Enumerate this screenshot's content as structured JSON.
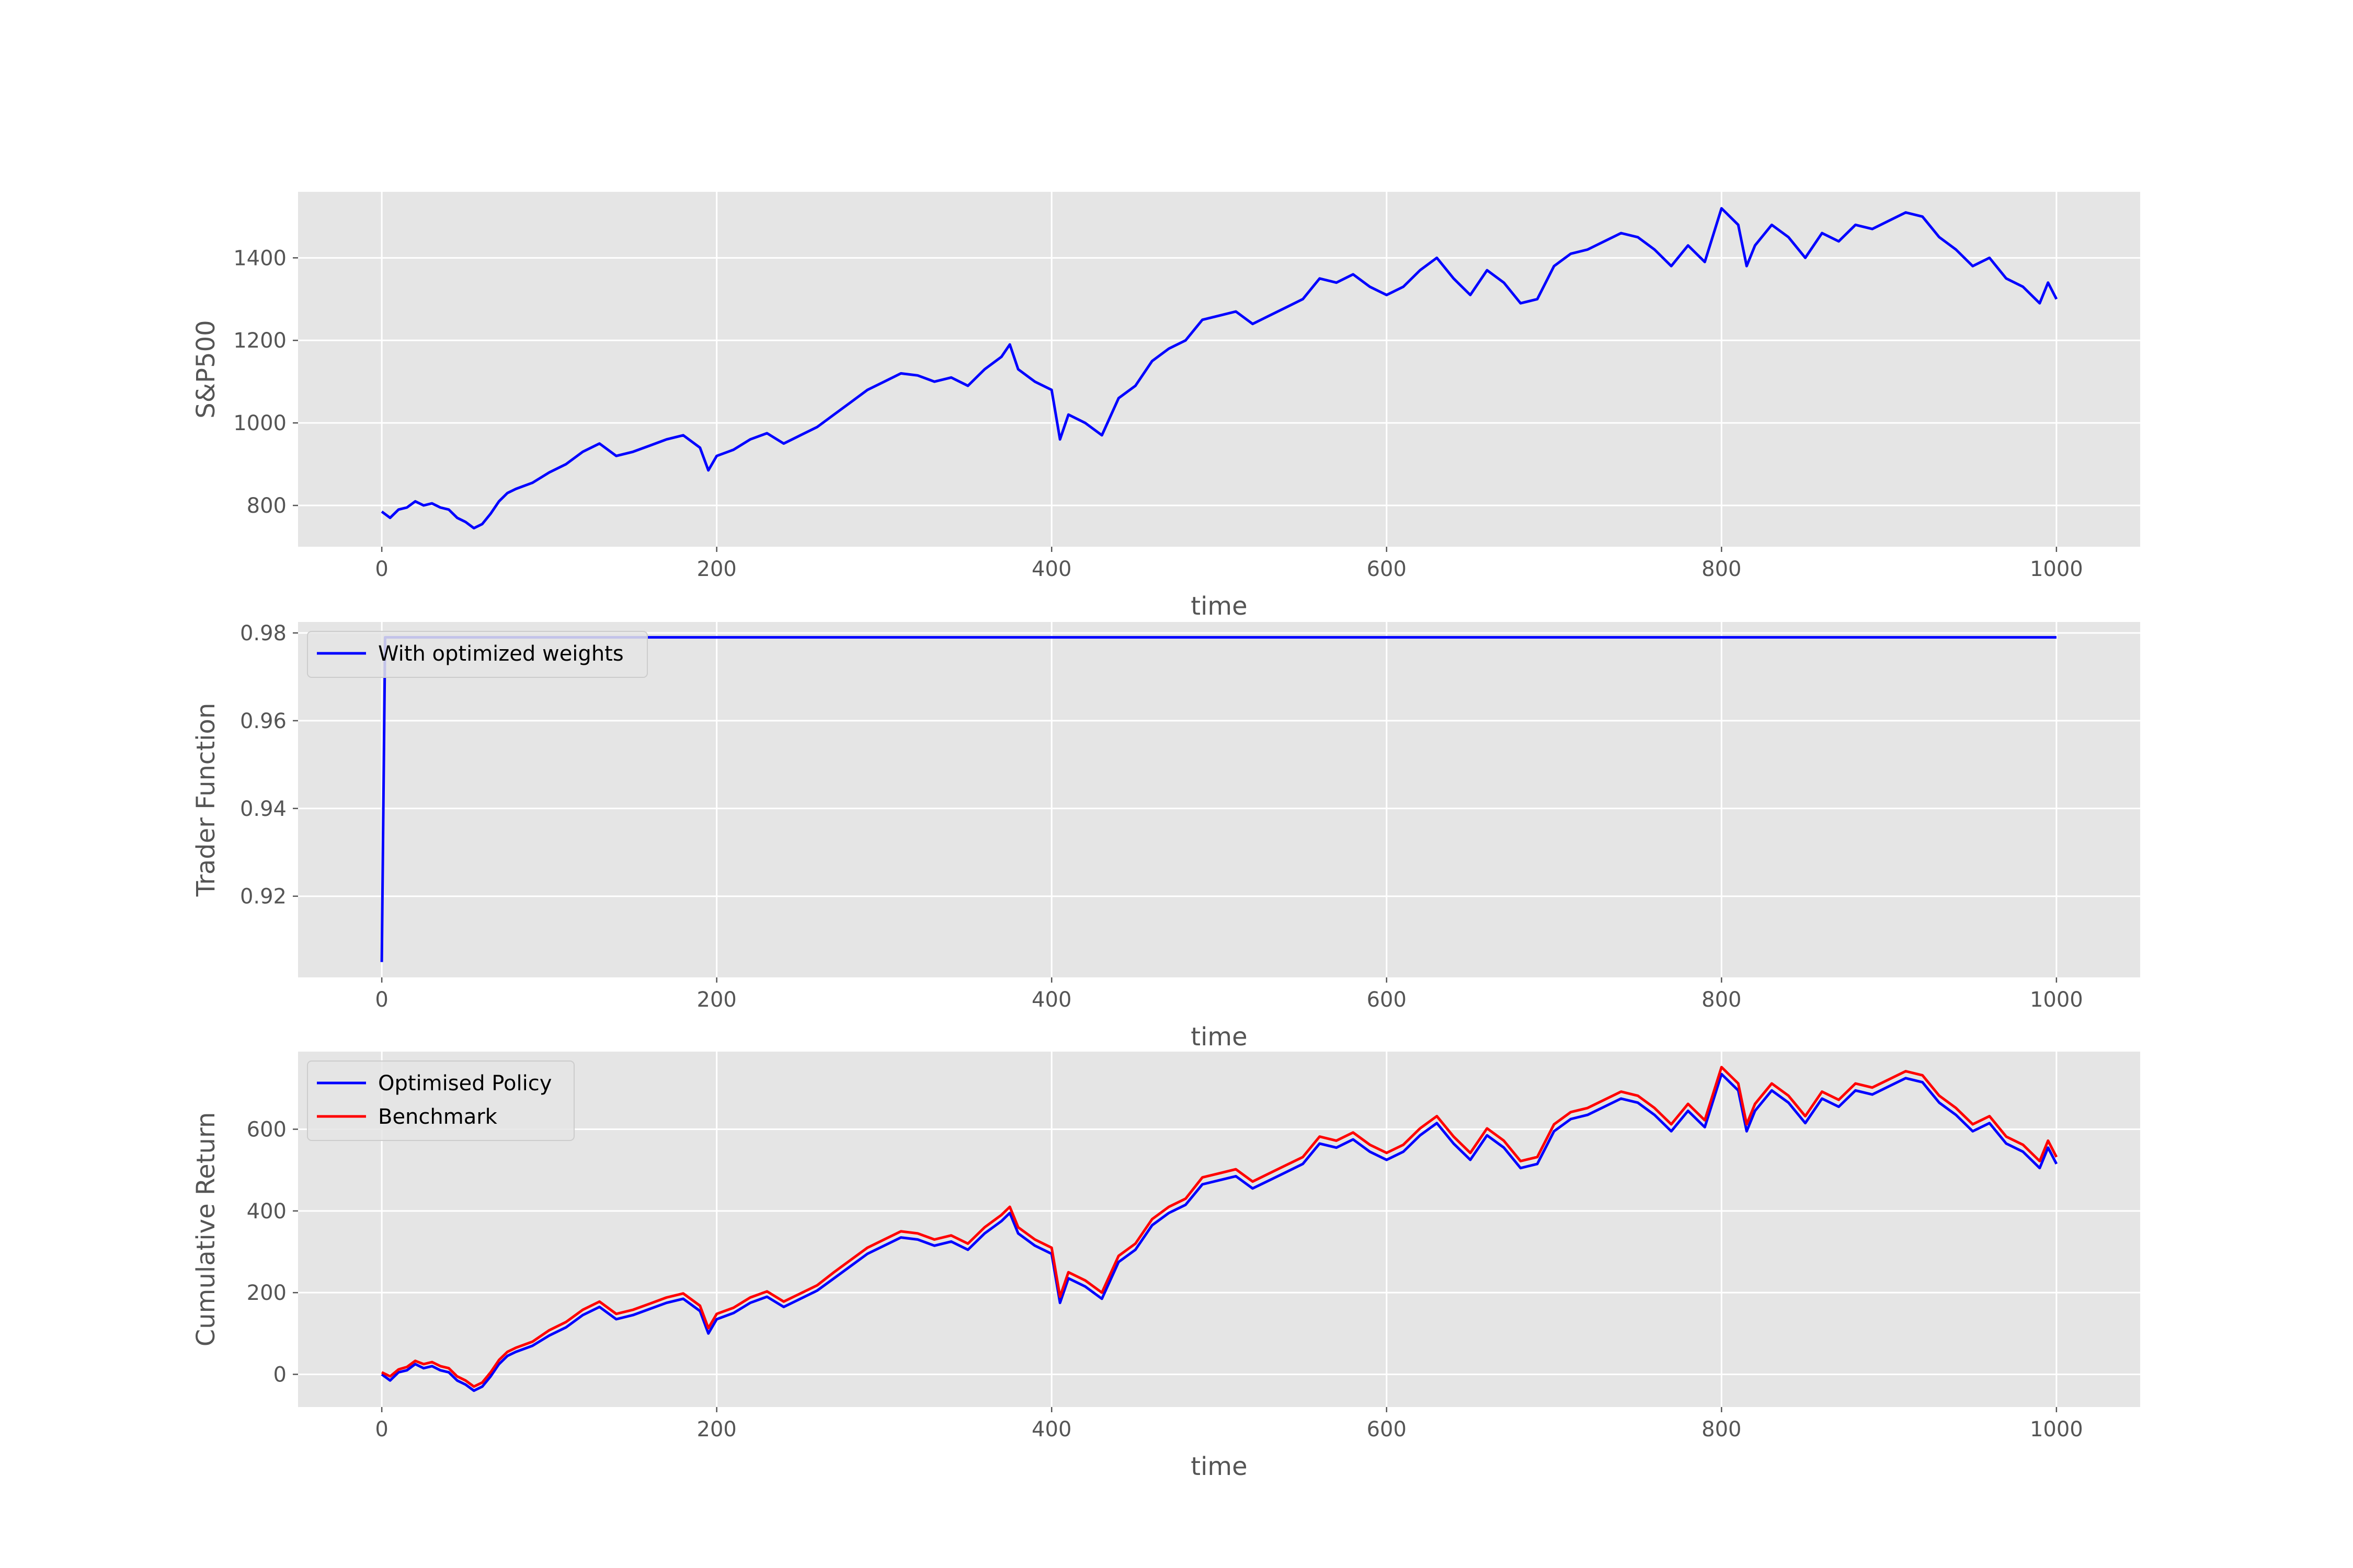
{
  "chart_data": [
    {
      "type": "line",
      "title": "",
      "xlabel": "time",
      "ylabel": "S&P500",
      "xlim": [
        -50,
        1050
      ],
      "ylim": [
        700,
        1560
      ],
      "xticks": [
        0,
        200,
        400,
        600,
        800,
        1000
      ],
      "yticks": [
        800,
        1000,
        1200,
        1400
      ],
      "grid": true,
      "legend": "none",
      "series": [
        {
          "color": "#0000ff",
          "x": [
            0,
            5,
            10,
            15,
            20,
            25,
            30,
            35,
            40,
            45,
            50,
            55,
            60,
            65,
            70,
            75,
            80,
            90,
            100,
            110,
            120,
            130,
            140,
            150,
            160,
            170,
            180,
            190,
            195,
            200,
            210,
            220,
            230,
            240,
            250,
            260,
            270,
            280,
            290,
            300,
            310,
            320,
            330,
            340,
            350,
            360,
            370,
            375,
            380,
            390,
            400,
            405,
            410,
            420,
            430,
            440,
            450,
            460,
            470,
            480,
            490,
            500,
            510,
            520,
            530,
            540,
            550,
            560,
            570,
            580,
            590,
            600,
            610,
            620,
            630,
            640,
            650,
            660,
            670,
            680,
            690,
            700,
            710,
            720,
            730,
            740,
            750,
            760,
            770,
            780,
            790,
            800,
            810,
            815,
            820,
            830,
            840,
            850,
            860,
            870,
            880,
            890,
            900,
            910,
            920,
            930,
            940,
            950,
            960,
            970,
            980,
            990,
            995,
            1000
          ],
          "values": [
            785,
            770,
            790,
            795,
            810,
            800,
            805,
            795,
            790,
            770,
            760,
            745,
            755,
            780,
            810,
            830,
            840,
            855,
            880,
            900,
            930,
            950,
            920,
            930,
            945,
            960,
            970,
            940,
            885,
            920,
            935,
            960,
            975,
            950,
            970,
            990,
            1020,
            1050,
            1080,
            1100,
            1120,
            1115,
            1100,
            1110,
            1090,
            1130,
            1160,
            1190,
            1130,
            1100,
            1080,
            960,
            1020,
            1000,
            970,
            1060,
            1090,
            1150,
            1180,
            1200,
            1250,
            1260,
            1270,
            1240,
            1260,
            1280,
            1300,
            1350,
            1340,
            1360,
            1330,
            1310,
            1330,
            1370,
            1400,
            1350,
            1310,
            1370,
            1340,
            1290,
            1300,
            1380,
            1410,
            1420,
            1440,
            1460,
            1450,
            1420,
            1380,
            1430,
            1390,
            1520,
            1480,
            1380,
            1430,
            1480,
            1450,
            1400,
            1460,
            1440,
            1480,
            1470,
            1490,
            1510,
            1500,
            1450,
            1420,
            1380,
            1400,
            1350,
            1330,
            1290,
            1340,
            1300
          ]
        }
      ]
    },
    {
      "type": "line",
      "title": "",
      "xlabel": "time",
      "ylabel": "Trader Function",
      "xlim": [
        -50,
        1050
      ],
      "ylim": [
        0.9015,
        0.9825
      ],
      "xticks": [
        0,
        200,
        400,
        600,
        800,
        1000
      ],
      "yticks": [
        0.92,
        0.94,
        0.96,
        0.98
      ],
      "grid": true,
      "legend": "top-left",
      "series": [
        {
          "name": "With optimized weights",
          "color": "#0000ff",
          "x": [
            0,
            2,
            1000
          ],
          "values": [
            0.905,
            0.979,
            0.979
          ]
        }
      ]
    },
    {
      "type": "line",
      "title": "",
      "xlabel": "time",
      "ylabel": "Cumulative Return",
      "xlim": [
        -50,
        1050
      ],
      "ylim": [
        -80,
        790
      ],
      "xticks": [
        0,
        200,
        400,
        600,
        800,
        1000
      ],
      "yticks": [
        0,
        200,
        400,
        600
      ],
      "grid": true,
      "legend": "top-left",
      "series": [
        {
          "name": "Optimised Policy",
          "color": "#0000ff",
          "x": [
            0,
            5,
            10,
            15,
            20,
            25,
            30,
            35,
            40,
            45,
            50,
            55,
            60,
            65,
            70,
            75,
            80,
            90,
            100,
            110,
            120,
            130,
            140,
            150,
            160,
            170,
            180,
            190,
            195,
            200,
            210,
            220,
            230,
            240,
            250,
            260,
            270,
            280,
            290,
            300,
            310,
            320,
            330,
            340,
            350,
            360,
            370,
            375,
            380,
            390,
            400,
            405,
            410,
            420,
            430,
            440,
            450,
            460,
            470,
            480,
            490,
            500,
            510,
            520,
            530,
            540,
            550,
            560,
            570,
            580,
            590,
            600,
            610,
            620,
            630,
            640,
            650,
            660,
            670,
            680,
            690,
            700,
            710,
            720,
            730,
            740,
            750,
            760,
            770,
            780,
            790,
            800,
            810,
            815,
            820,
            830,
            840,
            850,
            860,
            870,
            880,
            890,
            900,
            910,
            920,
            930,
            940,
            950,
            960,
            970,
            980,
            990,
            995,
            1000
          ],
          "values": [
            0,
            -15,
            5,
            10,
            25,
            15,
            20,
            10,
            5,
            -15,
            -25,
            -40,
            -30,
            -5,
            25,
            45,
            55,
            70,
            95,
            115,
            145,
            165,
            135,
            145,
            160,
            175,
            185,
            155,
            100,
            135,
            150,
            175,
            190,
            165,
            185,
            205,
            235,
            265,
            295,
            315,
            335,
            330,
            315,
            325,
            305,
            345,
            375,
            395,
            345,
            315,
            295,
            175,
            235,
            215,
            185,
            275,
            305,
            365,
            395,
            415,
            465,
            475,
            485,
            455,
            475,
            495,
            515,
            565,
            555,
            575,
            545,
            525,
            545,
            585,
            615,
            565,
            525,
            585,
            555,
            505,
            515,
            595,
            625,
            635,
            655,
            675,
            665,
            635,
            595,
            645,
            605,
            735,
            695,
            595,
            645,
            695,
            665,
            615,
            675,
            655,
            695,
            685,
            705,
            725,
            715,
            665,
            635,
            595,
            615,
            565,
            545,
            505,
            555,
            515
          ]
        },
        {
          "name": "Benchmark",
          "color": "#ff0000",
          "x": [
            0,
            5,
            10,
            15,
            20,
            25,
            30,
            35,
            40,
            45,
            50,
            55,
            60,
            65,
            70,
            75,
            80,
            90,
            100,
            110,
            120,
            130,
            140,
            150,
            160,
            170,
            180,
            190,
            195,
            200,
            210,
            220,
            230,
            240,
            250,
            260,
            270,
            280,
            290,
            300,
            310,
            320,
            330,
            340,
            350,
            360,
            370,
            375,
            380,
            390,
            400,
            405,
            410,
            420,
            430,
            440,
            450,
            460,
            470,
            480,
            490,
            500,
            510,
            520,
            530,
            540,
            550,
            560,
            570,
            580,
            590,
            600,
            610,
            620,
            630,
            640,
            650,
            660,
            670,
            680,
            690,
            700,
            710,
            720,
            730,
            740,
            750,
            760,
            770,
            780,
            790,
            800,
            810,
            815,
            820,
            830,
            840,
            850,
            860,
            870,
            880,
            890,
            900,
            910,
            920,
            930,
            940,
            950,
            960,
            970,
            980,
            990,
            995,
            1000
          ],
          "values": [
            5,
            -5,
            12,
            18,
            33,
            25,
            30,
            20,
            15,
            -5,
            -15,
            -30,
            -20,
            5,
            35,
            55,
            65,
            80,
            108,
            128,
            158,
            178,
            148,
            158,
            173,
            188,
            198,
            168,
            113,
            148,
            163,
            188,
            203,
            178,
            198,
            218,
            250,
            280,
            310,
            330,
            350,
            345,
            330,
            340,
            320,
            360,
            390,
            410,
            360,
            330,
            310,
            190,
            250,
            230,
            200,
            290,
            320,
            380,
            410,
            430,
            482,
            492,
            502,
            472,
            492,
            512,
            532,
            582,
            572,
            592,
            562,
            542,
            562,
            602,
            632,
            582,
            542,
            602,
            572,
            522,
            532,
            612,
            642,
            652,
            672,
            692,
            682,
            652,
            612,
            662,
            622,
            752,
            712,
            612,
            662,
            712,
            682,
            632,
            692,
            672,
            712,
            702,
            722,
            742,
            732,
            682,
            652,
            612,
            632,
            582,
            562,
            522,
            572,
            532
          ]
        }
      ]
    }
  ]
}
